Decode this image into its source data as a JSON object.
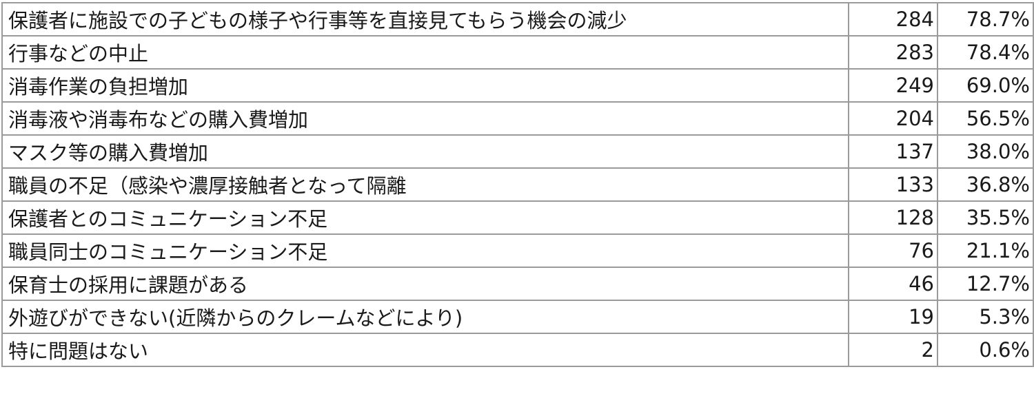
{
  "rows": [
    {
      "label": "保護者に施設での子どもの様子や行事等を直接見てもらう機会の減少",
      "count": "284",
      "pct": "78.7%"
    },
    {
      "label": "行事などの中止",
      "count": "283",
      "pct": "78.4%"
    },
    {
      "label": "消毒作業の負担増加",
      "count": "249",
      "pct": "69.0%"
    },
    {
      "label": "消毒液や消毒布などの購入費増加",
      "count": "204",
      "pct": "56.5%"
    },
    {
      "label": "マスク等の購入費増加",
      "count": "137",
      "pct": "38.0%"
    },
    {
      "label": "職員の不足（感染や濃厚接触者となって隔離",
      "count": "133",
      "pct": "36.8%"
    },
    {
      "label": "保護者とのコミュニケーション不足",
      "count": "128",
      "pct": "35.5%"
    },
    {
      "label": "職員同士のコミュニケーション不足",
      "count": "76",
      "pct": "21.1%"
    },
    {
      "label": "保育士の採用に課題がある",
      "count": "46",
      "pct": "12.7%"
    },
    {
      "label": "外遊びができない(近隣からのクレームなどにより)",
      "count": "19",
      "pct": "5.3%"
    },
    {
      "label": "特に問題はない",
      "count": "2",
      "pct": "0.6%"
    }
  ]
}
